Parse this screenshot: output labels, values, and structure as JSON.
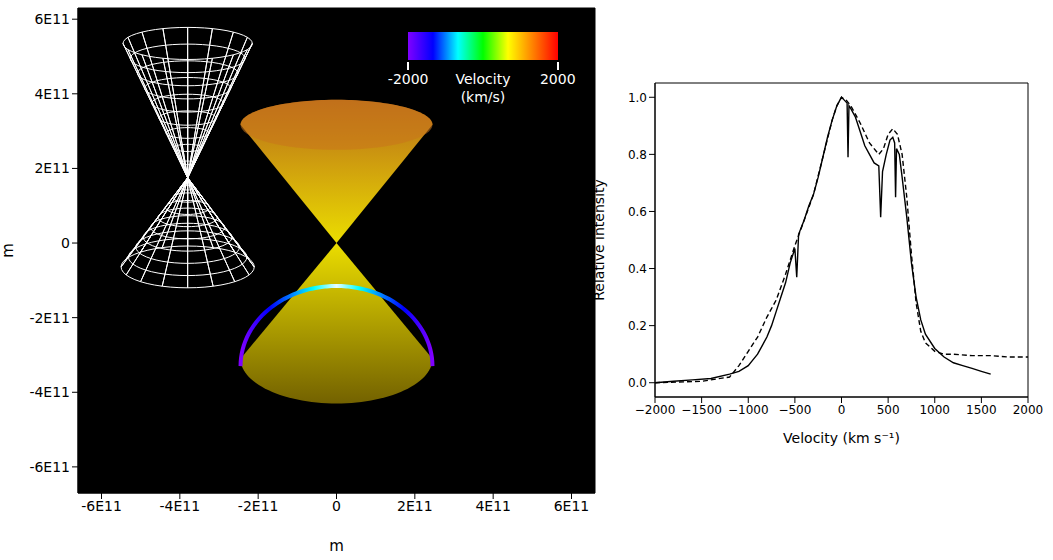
{
  "chart_data": [
    {
      "type": "cones",
      "xlabel": "m",
      "ylabel": "m",
      "xlim": [
        -660000000000.0,
        660000000000.0
      ],
      "ylim": [
        -670000000000.0,
        630000000000.0
      ],
      "xticks": [
        {
          "value": -600000000000.0,
          "label": "-6E11"
        },
        {
          "value": -400000000000.0,
          "label": "-4E11"
        },
        {
          "value": -200000000000.0,
          "label": "-2E11"
        },
        0,
        {
          "value": 200000000000.0,
          "label": "2E11"
        },
        {
          "value": 400000000000.0,
          "label": "4E11"
        },
        {
          "value": 600000000000.0,
          "label": "6E11"
        }
      ],
      "yticks": [
        {
          "value": -600000000000.0,
          "label": "-6E11"
        },
        {
          "value": -400000000000.0,
          "label": "-4E11"
        },
        {
          "value": -200000000000.0,
          "label": "-2E11"
        },
        0,
        {
          "value": 200000000000.0,
          "label": "2E11"
        },
        {
          "value": 400000000000.0,
          "label": "4E11"
        },
        {
          "value": 600000000000.0,
          "label": "6E11"
        }
      ],
      "cones": [
        {
          "type": "wireframe",
          "color": "#ffffff",
          "apex": [
            -380000000000.0,
            175000000000.0
          ],
          "nappes": [
            {
              "y": 535000000000.0,
              "half_width": 165000000000.0,
              "half_height": 43000000000.0
            },
            {
              "y": -64000000000.0,
              "half_width": 170000000000.0,
              "half_height": 56000000000.0
            }
          ]
        },
        {
          "type": "solid",
          "colors": [
            "#c8741c",
            "#fff000",
            "#7d6a00"
          ],
          "apex": [
            0,
            0
          ],
          "nappes": [
            {
              "y": 317000000000.0,
              "half_width": 245000000000.0,
              "half_height": 67000000000.0
            },
            {
              "y": -310000000000.0,
              "half_width": 245000000000.0,
              "half_height": 120000000000.0
            }
          ],
          "rim": {
            "y": -330000000000.0,
            "half_width": 245000000000.0,
            "half_height": 215000000000.0
          }
        }
      ],
      "colorbar": {
        "label": [
          "Velocity",
          "(km/s)"
        ],
        "range": [
          -2000,
          2000
        ],
        "ticks": [
          -2000,
          2000
        ],
        "colors": [
          "#8000ff",
          "#0000ff",
          "#00ffff",
          "#00ff00",
          "#ffff00",
          "#ff8000",
          "#ff0000"
        ]
      }
    },
    {
      "type": "line",
      "xlabel": "Velocity (km s⁻¹)",
      "ylabel": "Relative intensity",
      "xlim": [
        -2000,
        2000
      ],
      "ylim": [
        -0.05,
        1.05
      ],
      "xticks": [
        {
          "value": -2000,
          "label": "−2000"
        },
        {
          "value": -1500,
          "label": "−1500"
        },
        {
          "value": -1000,
          "label": "−1000"
        },
        {
          "value": -500,
          "label": "−500"
        },
        0,
        500,
        1000,
        1500,
        2000
      ],
      "yticks": [
        {
          "value": 0,
          "label": "0.0"
        },
        0.2,
        0.4,
        0.6,
        0.8,
        {
          "value": 1,
          "label": "1.0"
        }
      ],
      "series": [
        {
          "color": "#000000",
          "line_style": "solid",
          "x": [
            -2000,
            -1800,
            -1600,
            -1400,
            -1200,
            -1100,
            -1000,
            -950,
            -900,
            -850,
            -800,
            -750,
            -700,
            -650,
            -600,
            -550,
            -500,
            -480,
            -460,
            -400,
            -350,
            -300,
            -250,
            -200,
            -150,
            -100,
            -50,
            0,
            30,
            60,
            70,
            80,
            100,
            150,
            200,
            250,
            300,
            350,
            400,
            420,
            440,
            480,
            520,
            550,
            570,
            580,
            590,
            620,
            650,
            700,
            750,
            800,
            850,
            900,
            1000,
            1100,
            1200,
            1300,
            1400,
            1500,
            1600
          ],
          "values": [
            0.0,
            0.005,
            0.01,
            0.015,
            0.03,
            0.04,
            0.06,
            0.08,
            0.1,
            0.13,
            0.16,
            0.2,
            0.25,
            0.3,
            0.35,
            0.42,
            0.47,
            0.37,
            0.52,
            0.57,
            0.62,
            0.66,
            0.72,
            0.79,
            0.86,
            0.92,
            0.97,
            1.0,
            0.99,
            0.98,
            0.79,
            0.97,
            0.96,
            0.93,
            0.88,
            0.83,
            0.8,
            0.77,
            0.76,
            0.58,
            0.74,
            0.8,
            0.85,
            0.86,
            0.84,
            0.65,
            0.82,
            0.8,
            0.72,
            0.58,
            0.42,
            0.3,
            0.22,
            0.17,
            0.12,
            0.09,
            0.07,
            0.06,
            0.05,
            0.04,
            0.03
          ]
        },
        {
          "color": "#000000",
          "line_style": "dashed",
          "x": [
            -2000,
            -1500,
            -1200,
            -1100,
            -1000,
            -900,
            -800,
            -700,
            -600,
            -500,
            -400,
            -300,
            -200,
            -100,
            -50,
            0,
            50,
            100,
            200,
            300,
            400,
            450,
            500,
            550,
            600,
            650,
            700,
            750,
            800,
            850,
            900,
            1000,
            1100,
            1200,
            1400,
            1600,
            1800,
            2000
          ],
          "values": [
            0.0,
            0.005,
            0.02,
            0.06,
            0.11,
            0.16,
            0.23,
            0.29,
            0.38,
            0.48,
            0.57,
            0.66,
            0.79,
            0.92,
            0.97,
            1.0,
            0.99,
            0.97,
            0.91,
            0.84,
            0.8,
            0.82,
            0.87,
            0.89,
            0.87,
            0.8,
            0.65,
            0.45,
            0.28,
            0.18,
            0.14,
            0.11,
            0.1,
            0.1,
            0.095,
            0.095,
            0.09,
            0.09
          ]
        }
      ]
    }
  ]
}
